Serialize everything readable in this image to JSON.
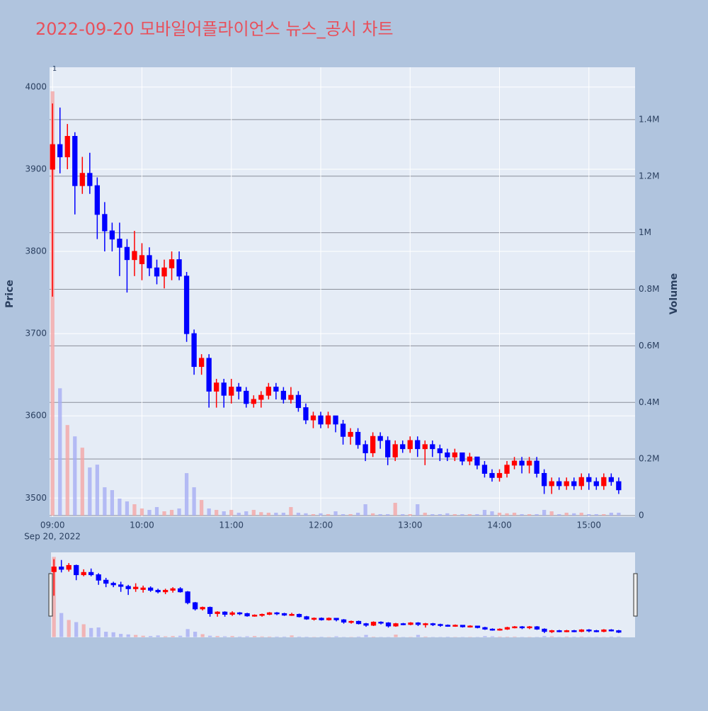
{
  "chart_data": {
    "type": "candlestick",
    "title": "2022-09-20 모바일어플라이언스 뉴스_공시 차트",
    "annotation": "1",
    "y_label": "Price",
    "y2_label": "Volume",
    "x_date_label": "Sep 20, 2022",
    "increasing_color": "#ff0000",
    "decreasing_color": "#0000ff",
    "volume_increasing_color": "#f4a6a6",
    "volume_decreasing_color": "#a6aef4",
    "grid": true,
    "rangeslider": true,
    "xlim": [
      "2022-09-20 08:58",
      "2022-09-20 15:31"
    ],
    "xticks": [
      {
        "value": "2022-09-20 09:00",
        "label": "09:00"
      },
      {
        "value": "2022-09-20 10:00",
        "label": "10:00"
      },
      {
        "value": "2022-09-20 11:00",
        "label": "11:00"
      },
      {
        "value": "2022-09-20 12:00",
        "label": "12:00"
      },
      {
        "value": "2022-09-20 13:00",
        "label": "13:00"
      },
      {
        "value": "2022-09-20 14:00",
        "label": "14:00"
      },
      {
        "value": "2022-09-20 15:00",
        "label": "15:00"
      }
    ],
    "ylim": [
      3477,
      4024
    ],
    "yticks": [
      3500,
      3600,
      3700,
      3800,
      3900,
      4000
    ],
    "y2lim": [
      -5000,
      1585000
    ],
    "y2ticks": [
      {
        "value": 0,
        "label": "0"
      },
      {
        "value": 200000,
        "label": "0.2M"
      },
      {
        "value": 400000,
        "label": "0.4M"
      },
      {
        "value": 600000,
        "label": "0.6M"
      },
      {
        "value": 800000,
        "label": "0.8M"
      },
      {
        "value": 1000000,
        "label": "1M"
      },
      {
        "value": 1200000,
        "label": "1.2M"
      },
      {
        "value": 1400000,
        "label": "1.4M"
      }
    ],
    "x": [
      "2022-09-20 09:00",
      "2022-09-20 09:05",
      "2022-09-20 09:10",
      "2022-09-20 09:15",
      "2022-09-20 09:20",
      "2022-09-20 09:25",
      "2022-09-20 09:30",
      "2022-09-20 09:35",
      "2022-09-20 09:40",
      "2022-09-20 09:45",
      "2022-09-20 09:50",
      "2022-09-20 09:55",
      "2022-09-20 10:00",
      "2022-09-20 10:05",
      "2022-09-20 10:10",
      "2022-09-20 10:15",
      "2022-09-20 10:20",
      "2022-09-20 10:25",
      "2022-09-20 10:30",
      "2022-09-20 10:35",
      "2022-09-20 10:40",
      "2022-09-20 10:45",
      "2022-09-20 10:50",
      "2022-09-20 10:55",
      "2022-09-20 11:00",
      "2022-09-20 11:05",
      "2022-09-20 11:10",
      "2022-09-20 11:15",
      "2022-09-20 11:20",
      "2022-09-20 11:25",
      "2022-09-20 11:30",
      "2022-09-20 11:35",
      "2022-09-20 11:40",
      "2022-09-20 11:45",
      "2022-09-20 11:50",
      "2022-09-20 11:55",
      "2022-09-20 12:00",
      "2022-09-20 12:05",
      "2022-09-20 12:10",
      "2022-09-20 12:15",
      "2022-09-20 12:20",
      "2022-09-20 12:25",
      "2022-09-20 12:30",
      "2022-09-20 12:35",
      "2022-09-20 12:40",
      "2022-09-20 12:45",
      "2022-09-20 12:50",
      "2022-09-20 12:55",
      "2022-09-20 13:00",
      "2022-09-20 13:05",
      "2022-09-20 13:10",
      "2022-09-20 13:15",
      "2022-09-20 13:20",
      "2022-09-20 13:25",
      "2022-09-20 13:30",
      "2022-09-20 13:35",
      "2022-09-20 13:40",
      "2022-09-20 13:45",
      "2022-09-20 13:50",
      "2022-09-20 13:55",
      "2022-09-20 14:00",
      "2022-09-20 14:05",
      "2022-09-20 14:10",
      "2022-09-20 14:15",
      "2022-09-20 14:20",
      "2022-09-20 14:25",
      "2022-09-20 14:30",
      "2022-09-20 14:35",
      "2022-09-20 14:40",
      "2022-09-20 14:45",
      "2022-09-20 14:50",
      "2022-09-20 14:55",
      "2022-09-20 15:00",
      "2022-09-20 15:05",
      "2022-09-20 15:10",
      "2022-09-20 15:15",
      "2022-09-20 15:20"
    ],
    "open": [
      3900,
      3930,
      3915,
      3940,
      3880,
      3895,
      3880,
      3845,
      3825,
      3815,
      3805,
      3790,
      3785,
      3795,
      3780,
      3770,
      3780,
      3790,
      3770,
      3700,
      3660,
      3670,
      3630,
      3640,
      3625,
      3635,
      3630,
      3615,
      3620,
      3625,
      3635,
      3630,
      3620,
      3625,
      3610,
      3595,
      3600,
      3590,
      3600,
      3590,
      3575,
      3580,
      3565,
      3555,
      3575,
      3570,
      3550,
      3565,
      3560,
      3570,
      3560,
      3565,
      3560,
      3555,
      3550,
      3555,
      3545,
      3550,
      3540,
      3530,
      3525,
      3530,
      3540,
      3545,
      3540,
      3545,
      3530,
      3515,
      3520,
      3515,
      3520,
      3515,
      3525,
      3520,
      3515,
      3525,
      3520
    ],
    "high": [
      3980,
      3975,
      3955,
      3945,
      3915,
      3920,
      3890,
      3860,
      3835,
      3835,
      3815,
      3825,
      3810,
      3805,
      3790,
      3790,
      3800,
      3800,
      3775,
      3705,
      3675,
      3675,
      3645,
      3645,
      3645,
      3640,
      3635,
      3625,
      3630,
      3640,
      3640,
      3635,
      3635,
      3630,
      3615,
      3605,
      3605,
      3605,
      3600,
      3595,
      3585,
      3585,
      3570,
      3580,
      3580,
      3575,
      3570,
      3570,
      3575,
      3575,
      3570,
      3570,
      3565,
      3560,
      3560,
      3555,
      3555,
      3550,
      3545,
      3535,
      3535,
      3545,
      3550,
      3550,
      3550,
      3550,
      3535,
      3525,
      3525,
      3525,
      3525,
      3530,
      3530,
      3525,
      3530,
      3530,
      3525
    ],
    "low": [
      3745,
      3895,
      3900,
      3845,
      3870,
      3870,
      3815,
      3800,
      3800,
      3770,
      3750,
      3770,
      3765,
      3770,
      3760,
      3755,
      3765,
      3765,
      3690,
      3650,
      3650,
      3610,
      3610,
      3610,
      3615,
      3620,
      3610,
      3610,
      3610,
      3620,
      3620,
      3615,
      3615,
      3605,
      3590,
      3585,
      3585,
      3585,
      3580,
      3565,
      3565,
      3560,
      3545,
      3550,
      3560,
      3540,
      3545,
      3555,
      3555,
      3550,
      3540,
      3550,
      3545,
      3545,
      3545,
      3540,
      3540,
      3535,
      3525,
      3520,
      3520,
      3525,
      3535,
      3530,
      3530,
      3525,
      3505,
      3505,
      3510,
      3510,
      3510,
      3510,
      3510,
      3510,
      3510,
      3515,
      3505
    ],
    "close": [
      3930,
      3915,
      3940,
      3880,
      3895,
      3880,
      3845,
      3825,
      3815,
      3805,
      3790,
      3800,
      3795,
      3780,
      3770,
      3780,
      3790,
      3770,
      3700,
      3660,
      3670,
      3630,
      3640,
      3625,
      3635,
      3630,
      3615,
      3620,
      3625,
      3635,
      3630,
      3620,
      3625,
      3610,
      3595,
      3600,
      3590,
      3600,
      3590,
      3575,
      3580,
      3565,
      3555,
      3575,
      3570,
      3550,
      3565,
      3560,
      3570,
      3560,
      3565,
      3560,
      3555,
      3550,
      3555,
      3545,
      3550,
      3540,
      3530,
      3525,
      3530,
      3540,
      3545,
      3540,
      3545,
      3530,
      3515,
      3520,
      3515,
      3520,
      3515,
      3525,
      3520,
      3515,
      3525,
      3520,
      3510
    ],
    "volume": [
      1500000,
      450000,
      320000,
      280000,
      240000,
      170000,
      180000,
      100000,
      90000,
      60000,
      50000,
      40000,
      25000,
      20000,
      30000,
      15000,
      20000,
      25000,
      150000,
      100000,
      55000,
      25000,
      20000,
      15000,
      20000,
      10000,
      15000,
      20000,
      12000,
      10000,
      10000,
      10000,
      30000,
      10000,
      8000,
      5000,
      8000,
      5000,
      15000,
      5000,
      5000,
      10000,
      40000,
      8000,
      5000,
      5000,
      45000,
      5000,
      5000,
      40000,
      10000,
      5000,
      5000,
      8000,
      5000,
      5000,
      5000,
      5000,
      20000,
      15000,
      10000,
      8000,
      10000,
      5000,
      5000,
      5000,
      20000,
      15000,
      5000,
      10000,
      8000,
      10000,
      5000,
      5000,
      5000,
      10000,
      10000
    ]
  }
}
